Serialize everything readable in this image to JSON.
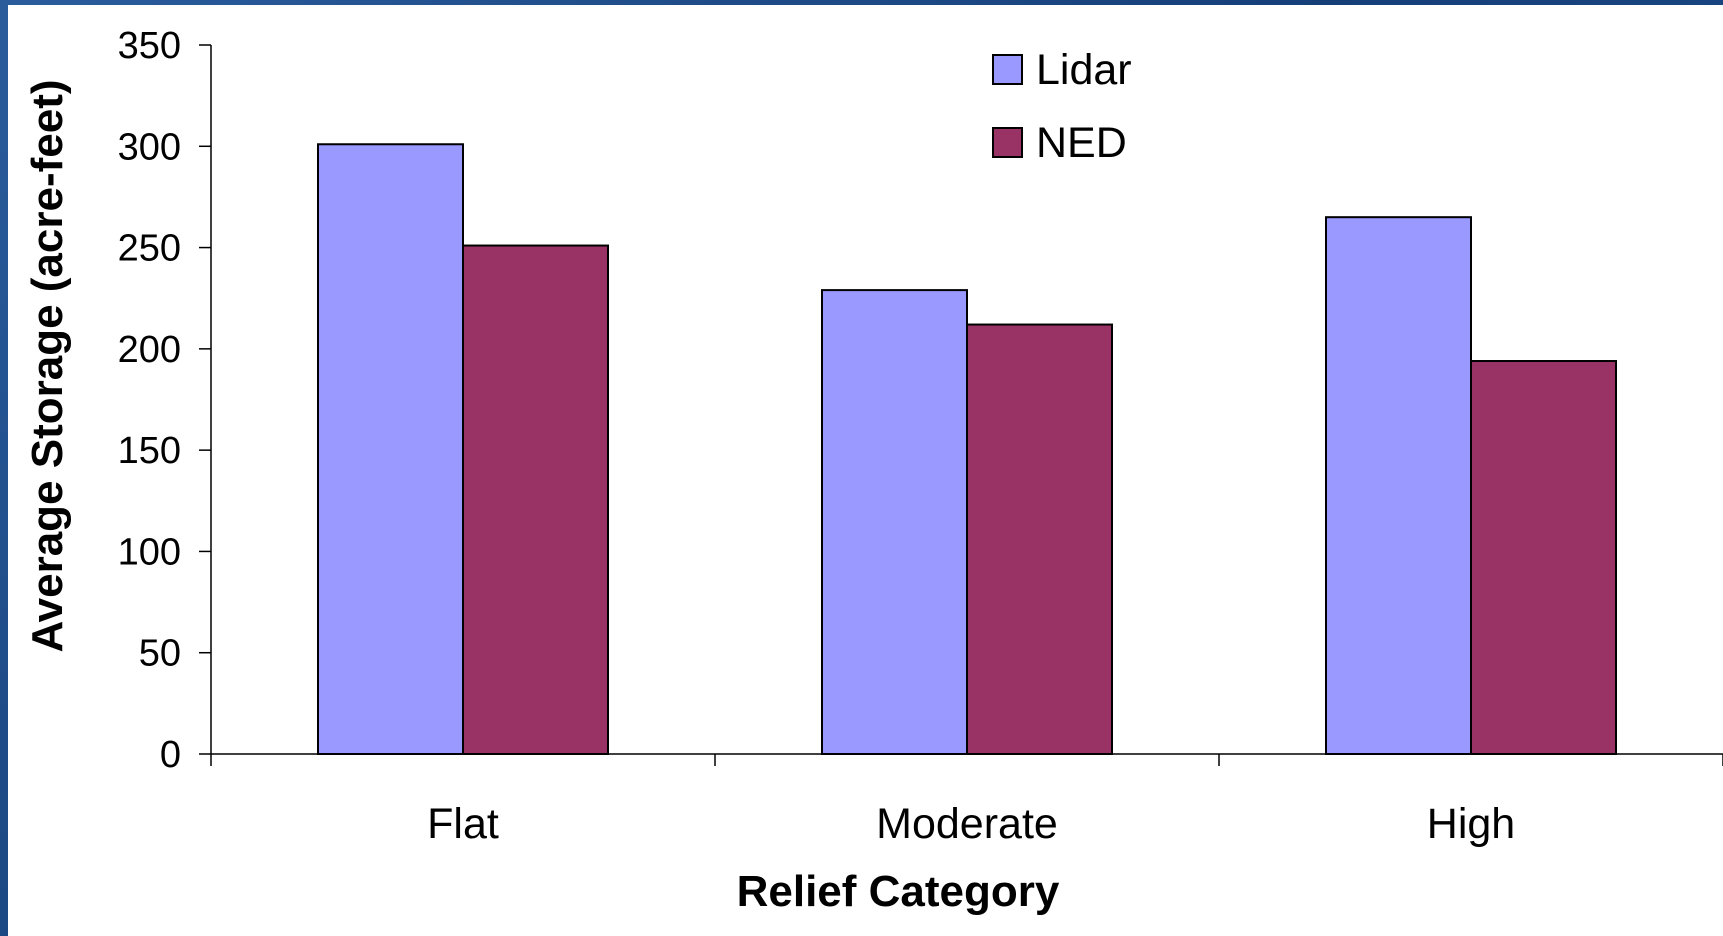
{
  "chart_data": {
    "type": "bar",
    "title": "",
    "xlabel": "Relief Category",
    "ylabel": "Average Storage (acre-feet)",
    "categories": [
      "Flat",
      "Moderate",
      "High"
    ],
    "series": [
      {
        "name": "Lidar",
        "values": [
          301,
          229,
          265
        ],
        "color": "#9999ff"
      },
      {
        "name": "NED",
        "values": [
          251,
          212,
          194
        ],
        "color": "#993366"
      }
    ],
    "ylim": [
      0,
      350
    ],
    "yticks": [
      "0",
      "50",
      "100",
      "150",
      "200",
      "250",
      "300",
      "350"
    ],
    "grid": false,
    "legend_position": "top-center",
    "plot_background": "#ffffff"
  }
}
